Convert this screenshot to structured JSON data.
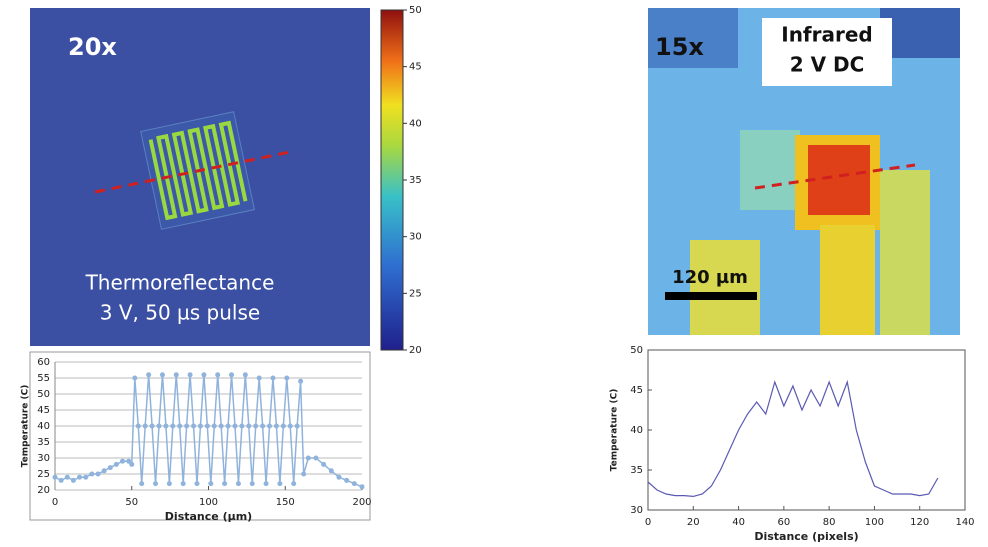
{
  "images": {
    "thermoreflectance": {
      "magnification": "20x",
      "caption_line1": "Thermoreflectance",
      "caption_line2": "3 V, 50 µs pulse",
      "colorbar": {
        "lim": [
          20,
          50
        ],
        "ticks": [
          20,
          25,
          30,
          35,
          40,
          45,
          50
        ]
      }
    },
    "infrared": {
      "magnification": "15x",
      "label_line1": "Infrared",
      "label_line2": "2 V DC",
      "scale_bar": "120 µm"
    }
  },
  "chart_data": [
    {
      "type": "line",
      "xlabel": "Distance (µm)",
      "ylabel": "Temperature (C)",
      "markers": true,
      "grid": true,
      "xlim": [
        0,
        200
      ],
      "xticks": [
        0,
        50,
        100,
        150,
        200
      ],
      "ylim": [
        20,
        60
      ],
      "yticks": [
        20,
        25,
        30,
        35,
        40,
        45,
        50,
        55,
        60
      ],
      "series": [
        {
          "color": "#8fb3dc",
          "x": [
            0,
            4,
            8,
            12,
            16,
            20,
            24,
            28,
            32,
            36,
            40,
            44,
            48,
            50,
            52,
            54.25,
            56.5,
            58.75,
            61,
            63.25,
            65.5,
            67.75,
            70,
            72.25,
            74.5,
            76.75,
            79,
            81.25,
            83.5,
            85.75,
            88,
            90.25,
            92.5,
            94.75,
            97,
            99.25,
            101.5,
            103.75,
            106,
            108.25,
            110.5,
            112.75,
            115,
            117.25,
            119.5,
            121.75,
            124,
            126.25,
            128.5,
            130.75,
            133,
            135.25,
            137.5,
            139.75,
            142,
            144.25,
            146.5,
            148.75,
            151,
            153.25,
            155.5,
            157.75,
            160,
            162,
            165,
            170,
            175,
            180,
            185,
            190,
            195,
            200
          ],
          "values": [
            24,
            23,
            24,
            23,
            24,
            24,
            25,
            25,
            26,
            27,
            28,
            29,
            29,
            28,
            55,
            40,
            22,
            40,
            56,
            40,
            22,
            40,
            56,
            40,
            22,
            40,
            56,
            40,
            22,
            40,
            56,
            40,
            22,
            40,
            56,
            40,
            22,
            40,
            56,
            40,
            22,
            40,
            56,
            40,
            22,
            40,
            56,
            40,
            22,
            40,
            55,
            40,
            22,
            40,
            55,
            40,
            22,
            40,
            55,
            40,
            22,
            40,
            54,
            25,
            30,
            30,
            28,
            26,
            24,
            23,
            22,
            21
          ]
        }
      ]
    },
    {
      "type": "line",
      "xlabel": "Distance (pixels)",
      "ylabel": "Temperature (C)",
      "markers": false,
      "grid": false,
      "xlim": [
        0,
        140
      ],
      "xticks": [
        0,
        20,
        40,
        60,
        80,
        100,
        120,
        140
      ],
      "ylim": [
        30,
        50
      ],
      "yticks": [
        30,
        35,
        40,
        45,
        50
      ],
      "series": [
        {
          "color": "#5a5ab4",
          "x": [
            0,
            4,
            8,
            12,
            16,
            20,
            24,
            28,
            32,
            36,
            40,
            44,
            48,
            52,
            56,
            60,
            64,
            68,
            72,
            76,
            80,
            84,
            88,
            92,
            96,
            100,
            104,
            108,
            112,
            116,
            120,
            124,
            128
          ],
          "values": [
            33.5,
            32.5,
            32,
            31.8,
            31.8,
            31.7,
            32,
            33,
            35,
            37.5,
            40,
            42,
            43.5,
            42,
            46,
            43,
            45.5,
            42.5,
            45,
            43,
            46,
            43,
            46,
            40,
            36,
            33,
            32.5,
            32,
            32,
            32,
            31.8,
            32,
            34
          ]
        }
      ]
    }
  ]
}
